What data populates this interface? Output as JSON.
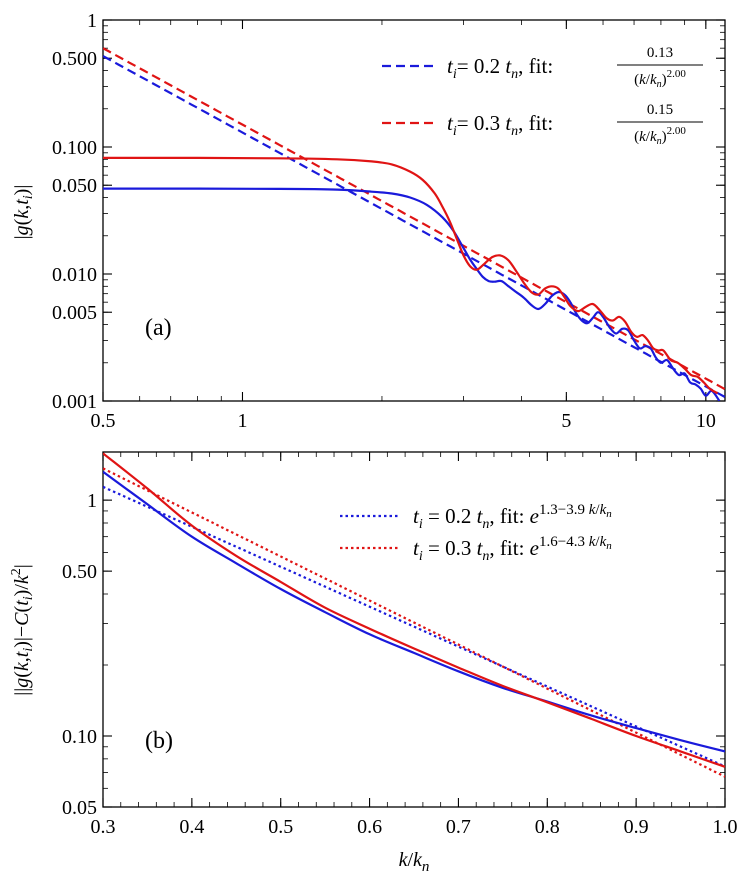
{
  "chart_data": [
    {
      "id": "a",
      "type": "line",
      "panel_label": "(a)",
      "xscale": "log",
      "yscale": "log",
      "xlim": [
        0.5,
        11
      ],
      "ylim": [
        0.001,
        1
      ],
      "xticks": [
        {
          "value": 0.5,
          "label": "0.5"
        },
        {
          "value": 1,
          "label": "1"
        },
        {
          "value": 5,
          "label": "5"
        },
        {
          "value": 10,
          "label": "10"
        }
      ],
      "yticks": [
        {
          "value": 0.001,
          "label": "0.001"
        },
        {
          "value": 0.005,
          "label": "0.005"
        },
        {
          "value": 0.01,
          "label": "0.010"
        },
        {
          "value": 0.05,
          "label": "0.050"
        },
        {
          "value": 0.1,
          "label": "0.100"
        },
        {
          "value": 0.5,
          "label": "0.500"
        },
        {
          "value": 1,
          "label": "1"
        }
      ],
      "ylabel": "|g(k,t_i)|",
      "legend_position": "top-right",
      "series": [
        {
          "name": "t_i= 0.2 t_n, fit: 0.13/(k/k_n)^2.00",
          "color": "#1a1adb",
          "style": "dashed",
          "kind": "powerlaw",
          "A": 0.13,
          "p": 2.0,
          "legend": {
            "ti": "0.2",
            "num": "0.13",
            "exp": "2.00"
          }
        },
        {
          "name": "t_i= 0.3 t_n, fit: 0.15/(k/k_n)^2.00",
          "color": "#e01414",
          "style": "dashed",
          "kind": "powerlaw",
          "A": 0.15,
          "p": 2.0,
          "legend": {
            "ti": "0.3",
            "num": "0.15",
            "exp": "2.00"
          }
        },
        {
          "name": "|g(k,t_i)|, t_i = 0.2 t_n",
          "color": "#1a1adb",
          "style": "solid",
          "kind": "data",
          "x": [
            0.5,
            0.8,
            1.2,
            1.6,
            1.9,
            2.1,
            2.3,
            2.5,
            2.7,
            2.85,
            3.0,
            3.1,
            3.2,
            3.3,
            3.4,
            3.5,
            3.62,
            3.75,
            3.9,
            4.05,
            4.2,
            4.35,
            4.5,
            4.65,
            4.8,
            4.95,
            5.1,
            5.25,
            5.4,
            5.55,
            5.7,
            5.85,
            6.0,
            6.2,
            6.4,
            6.6,
            6.8,
            7.0,
            7.2,
            7.4,
            7.6,
            7.8,
            8.0,
            8.25,
            8.5,
            8.75,
            9.0,
            9.25,
            9.5,
            9.75,
            10.0,
            10.3,
            10.7
          ],
          "y": [
            0.047,
            0.047,
            0.0468,
            0.0462,
            0.0445,
            0.043,
            0.04,
            0.035,
            0.028,
            0.022,
            0.016,
            0.013,
            0.011,
            0.0095,
            0.0088,
            0.0087,
            0.0088,
            0.008,
            0.0072,
            0.0065,
            0.0057,
            0.0053,
            0.0058,
            0.0067,
            0.0072,
            0.0069,
            0.006,
            0.0049,
            0.0043,
            0.0041,
            0.0045,
            0.005,
            0.0046,
            0.0038,
            0.0034,
            0.0037,
            0.0036,
            0.003,
            0.0026,
            0.0027,
            0.0026,
            0.0022,
            0.002,
            0.0021,
            0.0018,
            0.0016,
            0.00165,
            0.0014,
            0.00135,
            0.00125,
            0.0011,
            0.0012,
            0.001
          ]
        },
        {
          "name": "|g(k,t_i)|, t_i = 0.3 t_n",
          "color": "#e01414",
          "style": "solid",
          "kind": "data",
          "x": [
            0.5,
            0.8,
            1.2,
            1.6,
            1.9,
            2.1,
            2.3,
            2.45,
            2.6,
            2.7,
            2.8,
            2.9,
            3.0,
            3.1,
            3.2,
            3.3,
            3.45,
            3.6,
            3.75,
            3.9,
            4.05,
            4.2,
            4.35,
            4.5,
            4.65,
            4.8,
            4.95,
            5.1,
            5.3,
            5.5,
            5.7,
            5.9,
            6.1,
            6.3,
            6.5,
            6.7,
            6.9,
            7.1,
            7.3,
            7.5,
            7.7,
            7.9,
            8.1,
            8.4,
            8.7,
            9.0,
            9.3,
            9.6,
            9.9,
            10.2,
            10.6
          ],
          "y": [
            0.082,
            0.082,
            0.0815,
            0.08,
            0.077,
            0.073,
            0.064,
            0.055,
            0.043,
            0.034,
            0.026,
            0.019,
            0.014,
            0.0115,
            0.0108,
            0.0117,
            0.0135,
            0.014,
            0.0128,
            0.0105,
            0.0085,
            0.0072,
            0.0069,
            0.0077,
            0.008,
            0.0077,
            0.0066,
            0.0056,
            0.0051,
            0.0055,
            0.0058,
            0.0052,
            0.0045,
            0.0043,
            0.0046,
            0.0042,
            0.0035,
            0.0032,
            0.0033,
            0.003,
            0.0026,
            0.0025,
            0.0025,
            0.0021,
            0.002,
            0.0018,
            0.0016,
            0.00155,
            0.0014,
            0.00125,
            0.00115
          ]
        }
      ]
    },
    {
      "id": "b",
      "type": "line",
      "panel_label": "(b)",
      "xscale": "linear",
      "yscale": "log",
      "xlim": [
        0.3,
        1.0
      ],
      "ylim": [
        0.05,
        1.6
      ],
      "xlabel": "k/k_n",
      "xticks": [
        {
          "value": 0.3,
          "label": "0.3"
        },
        {
          "value": 0.4,
          "label": "0.4"
        },
        {
          "value": 0.5,
          "label": "0.5"
        },
        {
          "value": 0.6,
          "label": "0.6"
        },
        {
          "value": 0.7,
          "label": "0.7"
        },
        {
          "value": 0.8,
          "label": "0.8"
        },
        {
          "value": 0.9,
          "label": "0.9"
        },
        {
          "value": 1.0,
          "label": "1.0"
        }
      ],
      "yticks": [
        {
          "value": 0.05,
          "label": "0.05"
        },
        {
          "value": 0.1,
          "label": "0.10"
        },
        {
          "value": 0.5,
          "label": "0.50"
        },
        {
          "value": 1,
          "label": "1"
        }
      ],
      "ylabel": "||g(k,t_i)|−C(t_i)/k^2|",
      "legend_position": "top-right",
      "series": [
        {
          "name": "t_i = 0.2 t_n, fit: e^(1.3−3.9 k/k_n)",
          "color": "#1a1adb",
          "style": "dotted",
          "kind": "exp",
          "a": 1.3,
          "b": 3.9,
          "legend": {
            "ti": "0.2",
            "expo": "1.3−3.9"
          }
        },
        {
          "name": "t_i = 0.3 t_n, fit: e^(1.6−4.3 k/k_n)",
          "color": "#e01414",
          "style": "dotted",
          "kind": "exp",
          "a": 1.6,
          "b": 4.3,
          "legend": {
            "ti": "0.3",
            "expo": "1.6−4.3"
          }
        },
        {
          "name": "data, t_i = 0.2 t_n",
          "color": "#1a1adb",
          "style": "solid",
          "kind": "data",
          "x": [
            0.3,
            0.35,
            0.4,
            0.45,
            0.5,
            0.55,
            0.6,
            0.65,
            0.7,
            0.75,
            0.8,
            0.85,
            0.9,
            0.95,
            1.0
          ],
          "y": [
            1.32,
            0.96,
            0.7,
            0.54,
            0.42,
            0.335,
            0.27,
            0.225,
            0.188,
            0.16,
            0.14,
            0.122,
            0.108,
            0.096,
            0.086
          ]
        },
        {
          "name": "data, t_i = 0.3 t_n",
          "color": "#e01414",
          "style": "solid",
          "kind": "data",
          "x": [
            0.3,
            0.35,
            0.4,
            0.45,
            0.5,
            0.55,
            0.6,
            0.65,
            0.7,
            0.75,
            0.8,
            0.85,
            0.9,
            0.95,
            1.0
          ],
          "y": [
            1.58,
            1.12,
            0.78,
            0.58,
            0.45,
            0.35,
            0.285,
            0.235,
            0.195,
            0.163,
            0.139,
            0.118,
            0.1,
            0.086,
            0.074
          ]
        }
      ]
    }
  ]
}
